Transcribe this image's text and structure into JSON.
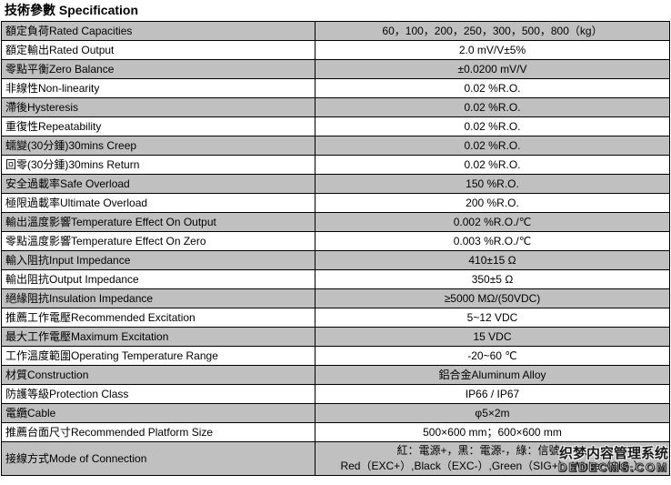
{
  "title": "技術參數 Specification",
  "colors": {
    "row_shaded": "#c0c0c0",
    "row_plain": "#ffffff",
    "border": "#000000",
    "text": "#000000"
  },
  "table": {
    "rows": [
      {
        "param": "額定負荷Rated Capacities",
        "value": "60，100，200，250，300，500，800（kg）"
      },
      {
        "param": "額定輸出Rated Output",
        "value": "2.0 mV/V±5%"
      },
      {
        "param": "零點平衡Zero Balance",
        "value": "±0.0200 mV/V"
      },
      {
        "param": "非線性Non-linearity",
        "value": "0.02 %R.O."
      },
      {
        "param": "滯後Hysteresis",
        "value": "0.02 %R.O."
      },
      {
        "param": "重復性Repeatability",
        "value": "0.02 %R.O."
      },
      {
        "param": "蠕變(30分鍾)30mins Creep",
        "value": "0.02 %R.O."
      },
      {
        "param": "回零(30分鍾)30mins Return",
        "value": "0.02 %R.O."
      },
      {
        "param": "安全過載率Safe Overload",
        "value": "150 %R.O."
      },
      {
        "param": "極限過載率Ultimate Overload",
        "value": "200 %R.O."
      },
      {
        "param": "輸出溫度影響Temperature Effect On Output",
        "value": "0.002 %R.O./℃"
      },
      {
        "param": "零點溫度影響Temperature Effect On Zero",
        "value": "0.003 %R.O./℃"
      },
      {
        "param": "輸入阻抗Input Impedance",
        "value": "410±15 Ω"
      },
      {
        "param": "輸出阻抗Output Impedance",
        "value": "350±5 Ω"
      },
      {
        "param": "絕緣阻抗Insulation Impedance",
        "value": "≥5000 MΩ/(50VDC)"
      },
      {
        "param": "推薦工作電壓Recommended Excitation",
        "value": "5~12 VDC"
      },
      {
        "param": "最大工作電壓Maximum Excitation",
        "value": "15 VDC"
      },
      {
        "param": "工作溫度範圍Operating Temperature Range",
        "value": "-20~60 ℃"
      },
      {
        "param": "材質Construction",
        "value": "鋁合金Aluminum Alloy"
      },
      {
        "param": "防護等級Protection Class",
        "value": "IP66 / IP67"
      },
      {
        "param": "電纜Cable",
        "value": "φ5×2m"
      },
      {
        "param": "推薦台面尺寸Recommended Platform Size",
        "value": "500×600 mm；600×600 mm"
      },
      {
        "param": "接線方式Mode of Connection",
        "value": "紅：電源+，黑：電源-，綠：信號+，白",
        "value2": "Red（EXC+）,Black（EXC-）,Green（SIG+）,White（SIG-）"
      }
    ]
  },
  "watermark": {
    "line1": "织梦内容管理系统",
    "line2": "DEDECMS.COM"
  }
}
